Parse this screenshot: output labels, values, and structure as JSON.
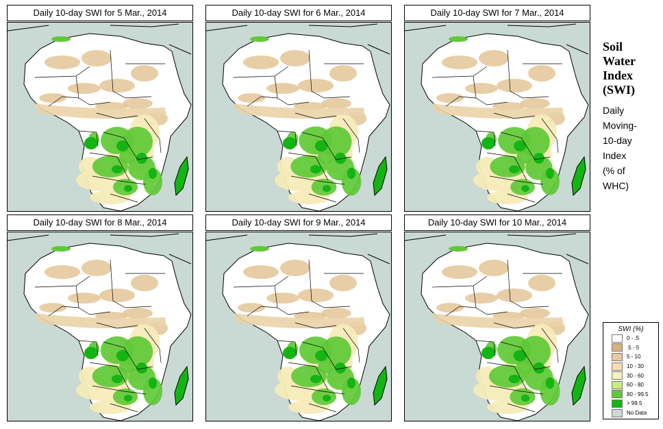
{
  "colors": {
    "ocean": "#c9d9d3",
    "no_data": "#c9d9d3",
    "border": "#000000"
  },
  "panels": [
    {
      "title": "Daily 10-day SWI for  5 Mar., 2014",
      "wet": 0.5
    },
    {
      "title": "Daily 10-day SWI for  6 Mar., 2014",
      "wet": 0.55
    },
    {
      "title": "Daily 10-day SWI for  7 Mar., 2014",
      "wet": 0.48
    },
    {
      "title": "Daily 10-day SWI for  8 Mar., 2014",
      "wet": 0.52
    },
    {
      "title": "Daily 10-day SWI for  9 Mar., 2014",
      "wet": 0.5
    },
    {
      "title": "Daily 10-day SWI for  10 Mar., 2014",
      "wet": 0.58
    }
  ],
  "sidebar": {
    "title_lines": [
      "Soil",
      "Water",
      "Index",
      "(SWI)"
    ],
    "subtitle_lines": [
      "Daily",
      "Moving-",
      "10-day",
      "Index"
    ],
    "unit_lines": [
      "(% of",
      " WHC)"
    ]
  },
  "legend": {
    "title": "SWI (%)",
    "items": [
      {
        "label": "0 - .5",
        "color": "#ffffff"
      },
      {
        "label": ".5 - 5",
        "color": "#d7b47f"
      },
      {
        "label": "5 - 10",
        "color": "#e7c99a"
      },
      {
        "label": "10 - 30",
        "color": "#f5deb3"
      },
      {
        "label": "30 - 60",
        "color": "#f7f0bf"
      },
      {
        "label": "60 - 80",
        "color": "#c8ec7c"
      },
      {
        "label": "80 - 99.5",
        "color": "#5fc936"
      },
      {
        "label": "> 99.5",
        "color": "#14b414"
      },
      {
        "label": "No Data",
        "color": "#c9d9d3"
      }
    ]
  }
}
